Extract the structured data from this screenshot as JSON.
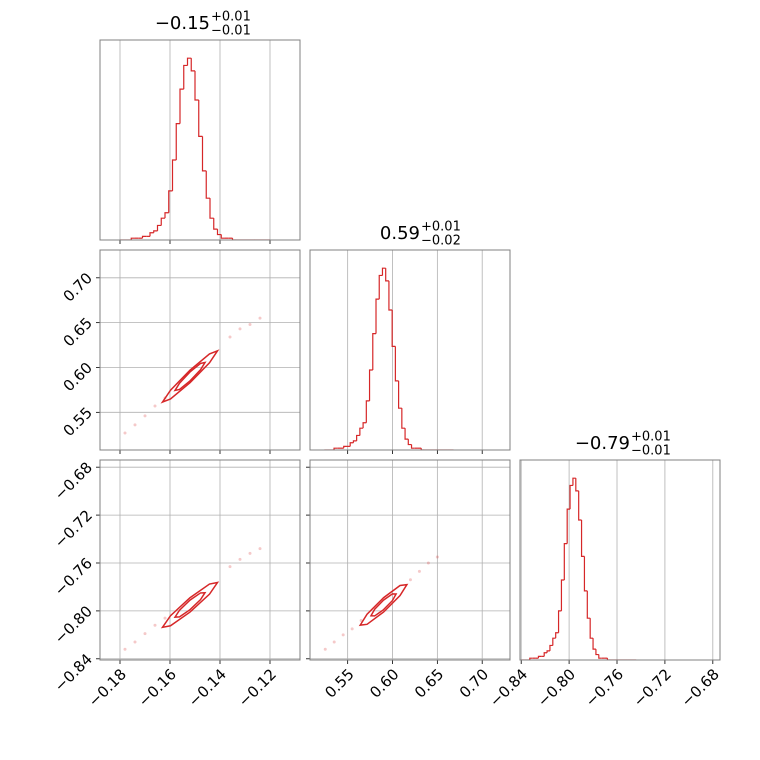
{
  "chart_data": {
    "type": "corner",
    "color": "#d62728",
    "grid": true,
    "params": [
      {
        "title": "−0.15",
        "plus": "+0.01",
        "minus": "−0.01",
        "lim": [
          -0.188,
          -0.108
        ],
        "ticks": [
          {
            "value": -0.18,
            "label": "−0.18"
          },
          {
            "value": -0.16,
            "label": "−0.16"
          },
          {
            "value": -0.14,
            "label": "−0.14"
          },
          {
            "value": -0.12,
            "label": "−0.12"
          }
        ],
        "hist": {
          "ylim": [
            0,
            110
          ],
          "bins": [
            -0.18,
            -0.1785,
            -0.177,
            -0.1755,
            -0.174,
            -0.1725,
            -0.171,
            -0.1695,
            -0.168,
            -0.1665,
            -0.165,
            -0.1635,
            -0.162,
            -0.1605,
            -0.159,
            -0.1575,
            -0.156,
            -0.1545,
            -0.153,
            -0.1515,
            -0.15,
            -0.1485,
            -0.147,
            -0.1455,
            -0.144,
            -0.1425,
            -0.141,
            -0.1395,
            -0.138,
            -0.1365,
            -0.135,
            -0.1335,
            -0.132,
            -0.1305,
            -0.129,
            -0.1275,
            -0.126,
            -0.1245,
            -0.123,
            -0.1215,
            -0.12
          ],
          "counts": [
            0,
            0,
            0,
            1,
            1,
            1,
            2,
            2,
            4,
            5,
            8,
            12,
            15,
            27,
            44,
            64,
            83,
            96,
            100,
            93,
            77,
            57,
            38,
            23,
            12,
            6,
            3,
            1,
            1,
            1,
            0,
            0,
            0,
            0,
            0,
            0,
            0,
            0,
            0,
            0
          ]
        }
      },
      {
        "title": "0.59",
        "plus": "+0.01",
        "minus": "−0.02",
        "lim": [
          0.508,
          0.731
        ],
        "ticks": [
          0.55,
          {
            "value": 0.6,
            "label": "0.60"
          },
          0.65,
          {
            "value": 0.7,
            "label": "0.70"
          }
        ],
        "hist": {
          "ylim": [
            0,
            110
          ],
          "bins": [
            0.524,
            0.5276,
            0.5312,
            0.5348,
            0.5384,
            0.542,
            0.5456,
            0.5492,
            0.5528,
            0.5564,
            0.56,
            0.5636,
            0.5672,
            0.5708,
            0.5744,
            0.578,
            0.5816,
            0.5852,
            0.5888,
            0.5924,
            0.596,
            0.5996,
            0.6032,
            0.6068,
            0.6104,
            0.614,
            0.6176,
            0.6212,
            0.6248,
            0.6284,
            0.632,
            0.6356,
            0.6392,
            0.6428,
            0.6464,
            0.65,
            0.6536,
            0.6572,
            0.6608,
            0.6644,
            0.668
          ],
          "counts": [
            0,
            0,
            0,
            1,
            1,
            1,
            2,
            2,
            4,
            5,
            8,
            12,
            15,
            27,
            44,
            64,
            83,
            96,
            100,
            93,
            77,
            57,
            38,
            23,
            12,
            6,
            3,
            1,
            1,
            1,
            0,
            0,
            0,
            0,
            0,
            0,
            0,
            0,
            0,
            0
          ]
        }
      },
      {
        "title": "−0.79",
        "plus": "+0.01",
        "minus": "−0.01",
        "lim": [
          -0.841,
          -0.674
        ],
        "ticks": [
          {
            "value": -0.84,
            "label": "−0.84"
          },
          {
            "value": -0.8,
            "label": "−0.80"
          },
          {
            "value": -0.76,
            "label": "−0.76"
          },
          {
            "value": -0.72,
            "label": "−0.72"
          },
          {
            "value": -0.68,
            "label": "−0.68"
          }
        ],
        "hist": {
          "ylim": [
            0,
            110
          ],
          "bins": [
            -0.84,
            -0.8376,
            -0.8352,
            -0.8328,
            -0.8304,
            -0.828,
            -0.8256,
            -0.8232,
            -0.8208,
            -0.8184,
            -0.816,
            -0.8136,
            -0.8112,
            -0.8088,
            -0.8064,
            -0.804,
            -0.8016,
            -0.7992,
            -0.7968,
            -0.7944,
            -0.792,
            -0.7896,
            -0.7872,
            -0.7848,
            -0.7824,
            -0.78,
            -0.7776,
            -0.7752,
            -0.7728,
            -0.7704,
            -0.768,
            -0.7656,
            -0.7632,
            -0.7608,
            -0.7584,
            -0.756,
            -0.7536,
            -0.7512,
            -0.7488,
            -0.7464,
            -0.744
          ],
          "counts": [
            0,
            0,
            0,
            1,
            1,
            1,
            2,
            2,
            4,
            5,
            8,
            12,
            15,
            27,
            44,
            64,
            83,
            96,
            100,
            93,
            77,
            57,
            38,
            23,
            12,
            6,
            3,
            1,
            1,
            1,
            0,
            0,
            0,
            0,
            0,
            0,
            0,
            0,
            0,
            0
          ]
        }
      }
    ],
    "pairs": [
      {
        "x": 0,
        "y": 1,
        "points": {
          "x": [
            -0.178,
            -0.174,
            -0.17,
            -0.166,
            -0.162,
            -0.136,
            -0.132,
            -0.128,
            -0.124
          ],
          "y": [
            0.527,
            0.536,
            0.546,
            0.557,
            0.566,
            0.634,
            0.643,
            0.648,
            0.655
          ]
        },
        "contours": [
          {
            "x": [
              -0.146,
              -0.1478,
              -0.152,
              -0.1562,
              -0.158,
              -0.1562,
              -0.152,
              -0.1478
            ],
            "y": [
              0.6056,
              0.6045,
              0.595,
              0.5825,
              0.5744,
              0.5755,
              0.585,
              0.5975
            ]
          },
          {
            "x": [
              -0.141,
              -0.1442,
              -0.152,
              -0.1598,
              -0.163,
              -0.1598,
              -0.152,
              -0.1442
            ],
            "y": [
              0.6186,
              0.6151,
              0.597,
              0.5747,
              0.5614,
              0.5649,
              0.583,
              0.6053
            ]
          }
        ]
      },
      {
        "x": 0,
        "y": 2,
        "points": {
          "x": [
            -0.178,
            -0.174,
            -0.17,
            -0.166,
            -0.162,
            -0.136,
            -0.132,
            -0.128,
            -0.124
          ],
          "y": [
            -0.832,
            -0.826,
            -0.819,
            -0.812,
            -0.806,
            -0.763,
            -0.757,
            -0.752,
            -0.748
          ]
        },
        "contours": [
          {
            "x": [
              -0.146,
              -0.1478,
              -0.152,
              -0.1562,
              -0.158,
              -0.1562,
              -0.152,
              -0.1478
            ],
            "y": [
              -0.7848,
              -0.785,
              -0.791,
              -0.7994,
              -0.8052,
              -0.805,
              -0.799,
              -0.7906
            ]
          },
          {
            "x": [
              -0.141,
              -0.1442,
              -0.152,
              -0.1598,
              -0.163,
              -0.1598,
              -0.152,
              -0.1442
            ],
            "y": [
              -0.7763,
              -0.7776,
              -0.789,
              -0.804,
              -0.8137,
              -0.8124,
              -0.801,
              -0.786
            ]
          }
        ]
      },
      {
        "x": 1,
        "y": 2,
        "points": {
          "x": [
            0.525,
            0.535,
            0.545,
            0.555,
            0.565,
            0.62,
            0.63,
            0.64,
            0.65
          ],
          "y": [
            -0.832,
            -0.826,
            -0.82,
            -0.815,
            -0.808,
            -0.774,
            -0.767,
            -0.76,
            -0.755
          ]
        },
        "contours": [
          {
            "x": [
              0.604,
              0.5999,
              0.59,
              0.5801,
              0.576,
              0.5801,
              0.59,
              0.5999
            ],
            "y": [
              -0.7859,
              -0.7858,
              -0.791,
              -0.7986,
              -0.8041,
              -0.8042,
              -0.799,
              -0.7914
            ]
          },
          {
            "x": [
              0.616,
              0.6084,
              0.59,
              0.5716,
              0.564,
              0.5716,
              0.59,
              0.6084
            ],
            "y": [
              -0.7781,
              -0.7788,
              -0.789,
              -0.8028,
              -0.8119,
              -0.8112,
              -0.801,
              -0.7872
            ]
          }
        ]
      }
    ]
  }
}
